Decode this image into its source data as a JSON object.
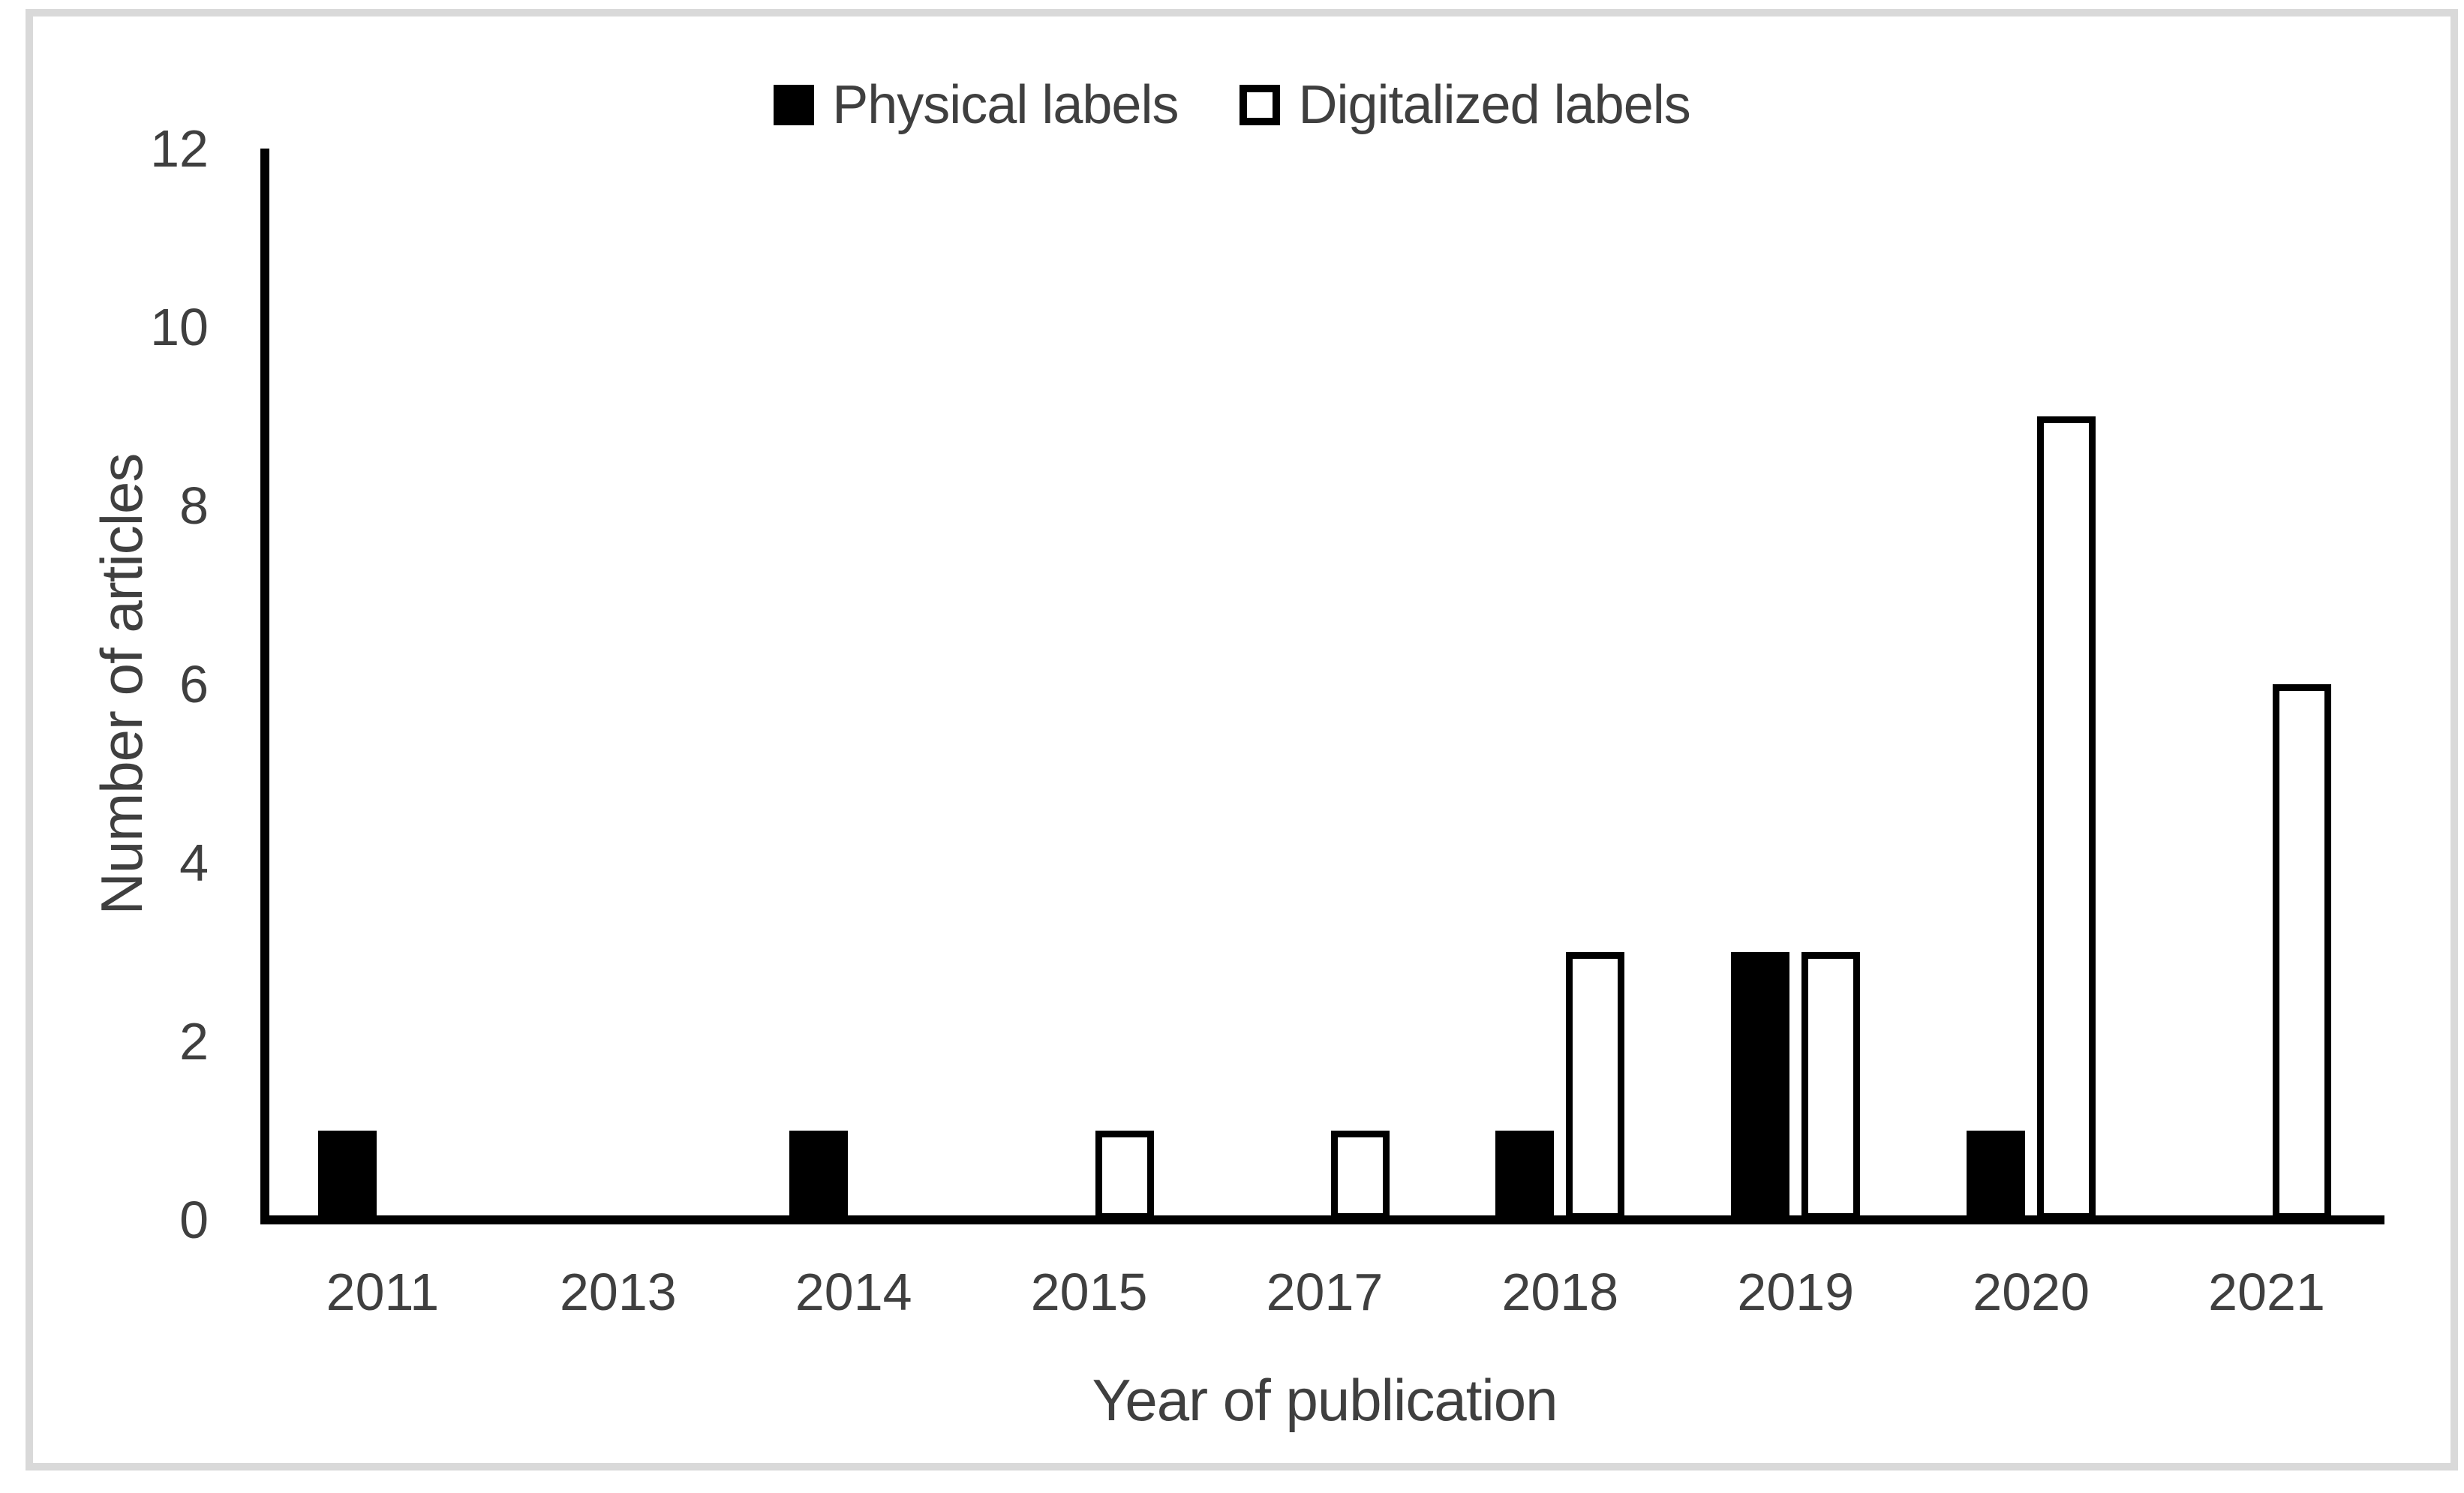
{
  "chart_data": {
    "type": "bar",
    "title": "",
    "categories": [
      "2011",
      "2013",
      "2014",
      "2015",
      "2017",
      "2018",
      "2019",
      "2020",
      "2021"
    ],
    "series": [
      {
        "name": "Physical labels",
        "values": [
          1,
          0,
          1,
          0,
          0,
          1,
          3,
          1,
          0
        ],
        "fill": "#000000",
        "stroke": "#000000"
      },
      {
        "name": "Digitalized labels",
        "values": [
          0,
          0,
          0,
          1,
          1,
          3,
          3,
          9,
          6
        ],
        "fill": "#ffffff",
        "stroke": "#000000"
      }
    ],
    "xlabel": "Year of publication",
    "ylabel": "Number of articles",
    "ylim": [
      0,
      12
    ],
    "yticks": [
      "0",
      "2",
      "4",
      "6",
      "8",
      "10",
      "12"
    ],
    "grid": false,
    "legend_position": "top-center",
    "colors": {
      "axis_line": "#000000",
      "text": "#3f3f3f",
      "frame_border": "#d9d9d9",
      "background": "#ffffff"
    }
  }
}
